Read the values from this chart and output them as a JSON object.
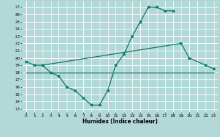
{
  "xlabel": "Humidex (Indice chaleur)",
  "background_color": "#b2d8d8",
  "grid_color": "#ffffff",
  "line_color": "#1a7a6e",
  "xlim": [
    -0.5,
    23.5
  ],
  "ylim": [
    12.5,
    27.8
  ],
  "yticks": [
    13,
    14,
    15,
    16,
    17,
    18,
    19,
    20,
    21,
    22,
    23,
    24,
    25,
    26,
    27
  ],
  "xticks": [
    0,
    1,
    2,
    3,
    4,
    5,
    6,
    7,
    8,
    9,
    10,
    11,
    12,
    13,
    14,
    15,
    16,
    17,
    18,
    19,
    20,
    21,
    22,
    23
  ],
  "line1_x": [
    0,
    1,
    2,
    3,
    4,
    5,
    6,
    7,
    8,
    9,
    10,
    11,
    12,
    13,
    14,
    15,
    16,
    17,
    18
  ],
  "line1_y": [
    19.5,
    19.0,
    19.0,
    18.0,
    17.5,
    16.0,
    15.5,
    14.5,
    13.5,
    13.5,
    15.5,
    19.0,
    20.5,
    23.0,
    25.0,
    27.0,
    27.0,
    26.5,
    26.5
  ],
  "line2_x": [
    2,
    19,
    20,
    22,
    23
  ],
  "line2_y": [
    19.0,
    22.0,
    20.0,
    19.0,
    18.5
  ],
  "line3_x": [
    0,
    23
  ],
  "line3_y": [
    18.0,
    18.0
  ],
  "xlabel_fontsize": 5.5,
  "tick_fontsize": 4.5,
  "linewidth": 1.0,
  "markersize": 2.0
}
